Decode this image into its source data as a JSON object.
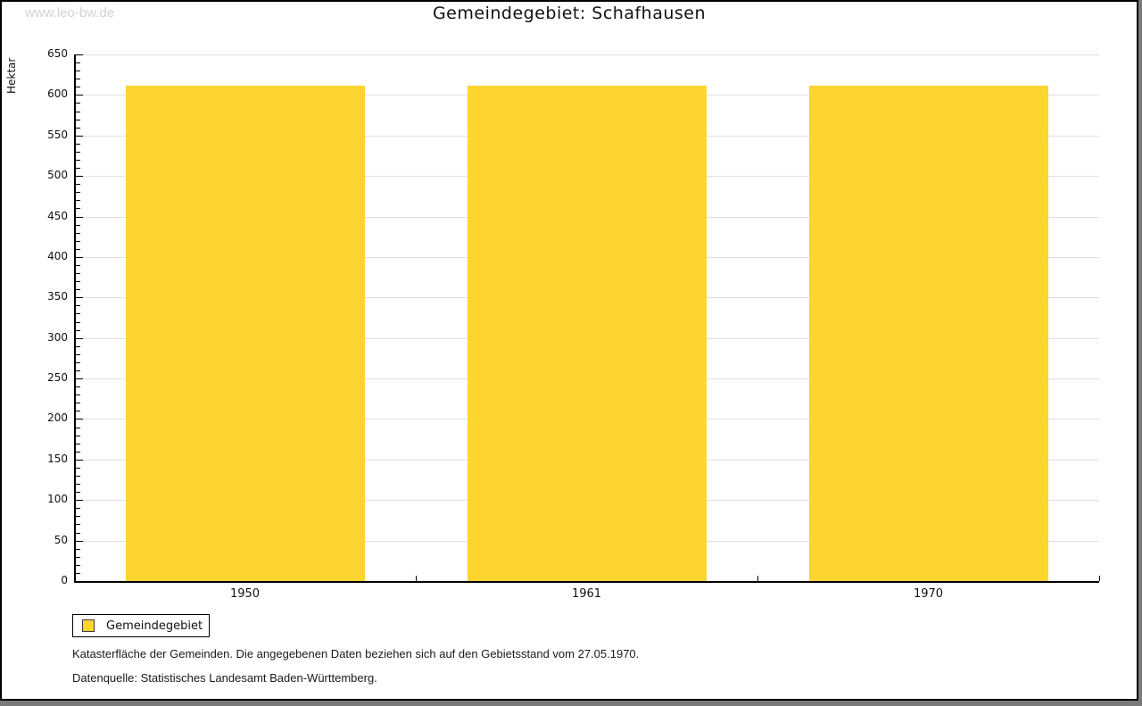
{
  "watermark": "www.leo-bw.de",
  "header": {
    "title": "Gemeindegebiet: Schafhausen"
  },
  "chart_data": {
    "type": "bar",
    "title": "Gemeindegebiet: Schafhausen",
    "categories": [
      "1950",
      "1961",
      "1970"
    ],
    "series": [
      {
        "name": "Gemeindegebiet",
        "color": "#FDD530",
        "values": [
          611,
          611,
          611
        ]
      }
    ],
    "ylabel": "Hektar",
    "ylim": [
      0,
      650
    ],
    "y_major_step": 50,
    "y_minor_step": 10,
    "grid": true,
    "gridline_color": "#E0E0E0",
    "legend_position": "bottom-left"
  },
  "legend": {
    "label": "Gemeindegebiet",
    "swatch_color": "#FDD530"
  },
  "footer": {
    "line1": "Katasterfläche der Gemeinden. Die angegebenen Daten beziehen sich auf den Gebietsstand vom 27.05.1970.",
    "line2": "Datenquelle: Statistisches Landesamt Baden-Württemberg."
  }
}
